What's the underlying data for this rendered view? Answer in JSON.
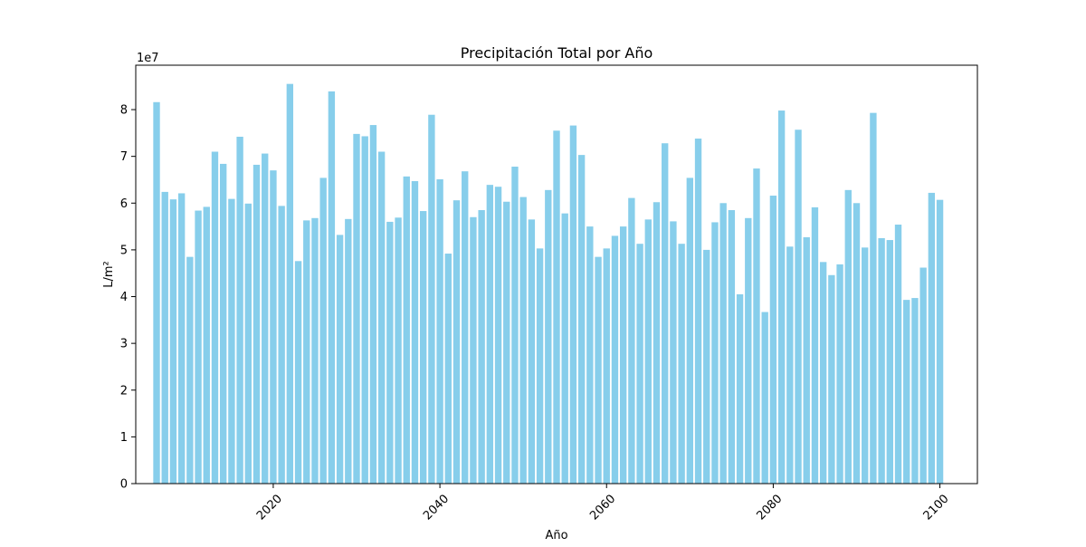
{
  "chart_data": {
    "type": "bar",
    "title": "Precipitación Total por Año",
    "xlabel": "Año",
    "ylabel": "L/m²",
    "y_offset_label": "1e7",
    "bar_color": "#87ceeb",
    "grid": false,
    "xlim": [
      2003.5,
      2104.5
    ],
    "ylim": [
      0,
      89500000
    ],
    "x_ticks": [
      2020,
      2040,
      2060,
      2080,
      2100
    ],
    "y_ticks": [
      0,
      10000000,
      20000000,
      30000000,
      40000000,
      50000000,
      60000000,
      70000000,
      80000000
    ],
    "y_tick_labels": [
      "0",
      "1",
      "2",
      "3",
      "4",
      "5",
      "6",
      "7",
      "8"
    ],
    "years": [
      2006,
      2007,
      2008,
      2009,
      2010,
      2011,
      2012,
      2013,
      2014,
      2015,
      2016,
      2017,
      2018,
      2019,
      2020,
      2021,
      2022,
      2023,
      2024,
      2025,
      2026,
      2027,
      2028,
      2029,
      2030,
      2031,
      2032,
      2033,
      2034,
      2035,
      2036,
      2037,
      2038,
      2039,
      2040,
      2041,
      2042,
      2043,
      2044,
      2045,
      2046,
      2047,
      2048,
      2049,
      2050,
      2051,
      2052,
      2053,
      2054,
      2055,
      2056,
      2057,
      2058,
      2059,
      2060,
      2061,
      2062,
      2063,
      2064,
      2065,
      2066,
      2067,
      2068,
      2069,
      2070,
      2071,
      2072,
      2073,
      2074,
      2075,
      2076,
      2077,
      2078,
      2079,
      2080,
      2081,
      2082,
      2083,
      2084,
      2085,
      2086,
      2087,
      2088,
      2089,
      2090,
      2091,
      2092,
      2093,
      2094,
      2095,
      2096,
      2097,
      2098,
      2099,
      2100
    ],
    "values": [
      81600000,
      62400000,
      60800000,
      62100000,
      48500000,
      58400000,
      59200000,
      71000000,
      68400000,
      60900000,
      74200000,
      59900000,
      68200000,
      70600000,
      67000000,
      59400000,
      85500000,
      47600000,
      56300000,
      56800000,
      65400000,
      83900000,
      53200000,
      56600000,
      74800000,
      74300000,
      76700000,
      71000000,
      56000000,
      56900000,
      65700000,
      64700000,
      58300000,
      78900000,
      65100000,
      49200000,
      60600000,
      66800000,
      57000000,
      58500000,
      63900000,
      63500000,
      60300000,
      67800000,
      61300000,
      56500000,
      50300000,
      62800000,
      75500000,
      57800000,
      76600000,
      70300000,
      55000000,
      48500000,
      50300000,
      53000000,
      55000000,
      61100000,
      51300000,
      56500000,
      60200000,
      72800000,
      56100000,
      51300000,
      65400000,
      73800000,
      50000000,
      55900000,
      60000000,
      58500000,
      40500000,
      56800000,
      67400000,
      36700000,
      61600000,
      79800000,
      50700000,
      75700000,
      52700000,
      59100000,
      47400000,
      44600000,
      46900000,
      62800000,
      60000000,
      50500000,
      79300000,
      52500000,
      52100000,
      55400000,
      39300000,
      39700000,
      46200000,
      62200000,
      60700000
    ]
  }
}
